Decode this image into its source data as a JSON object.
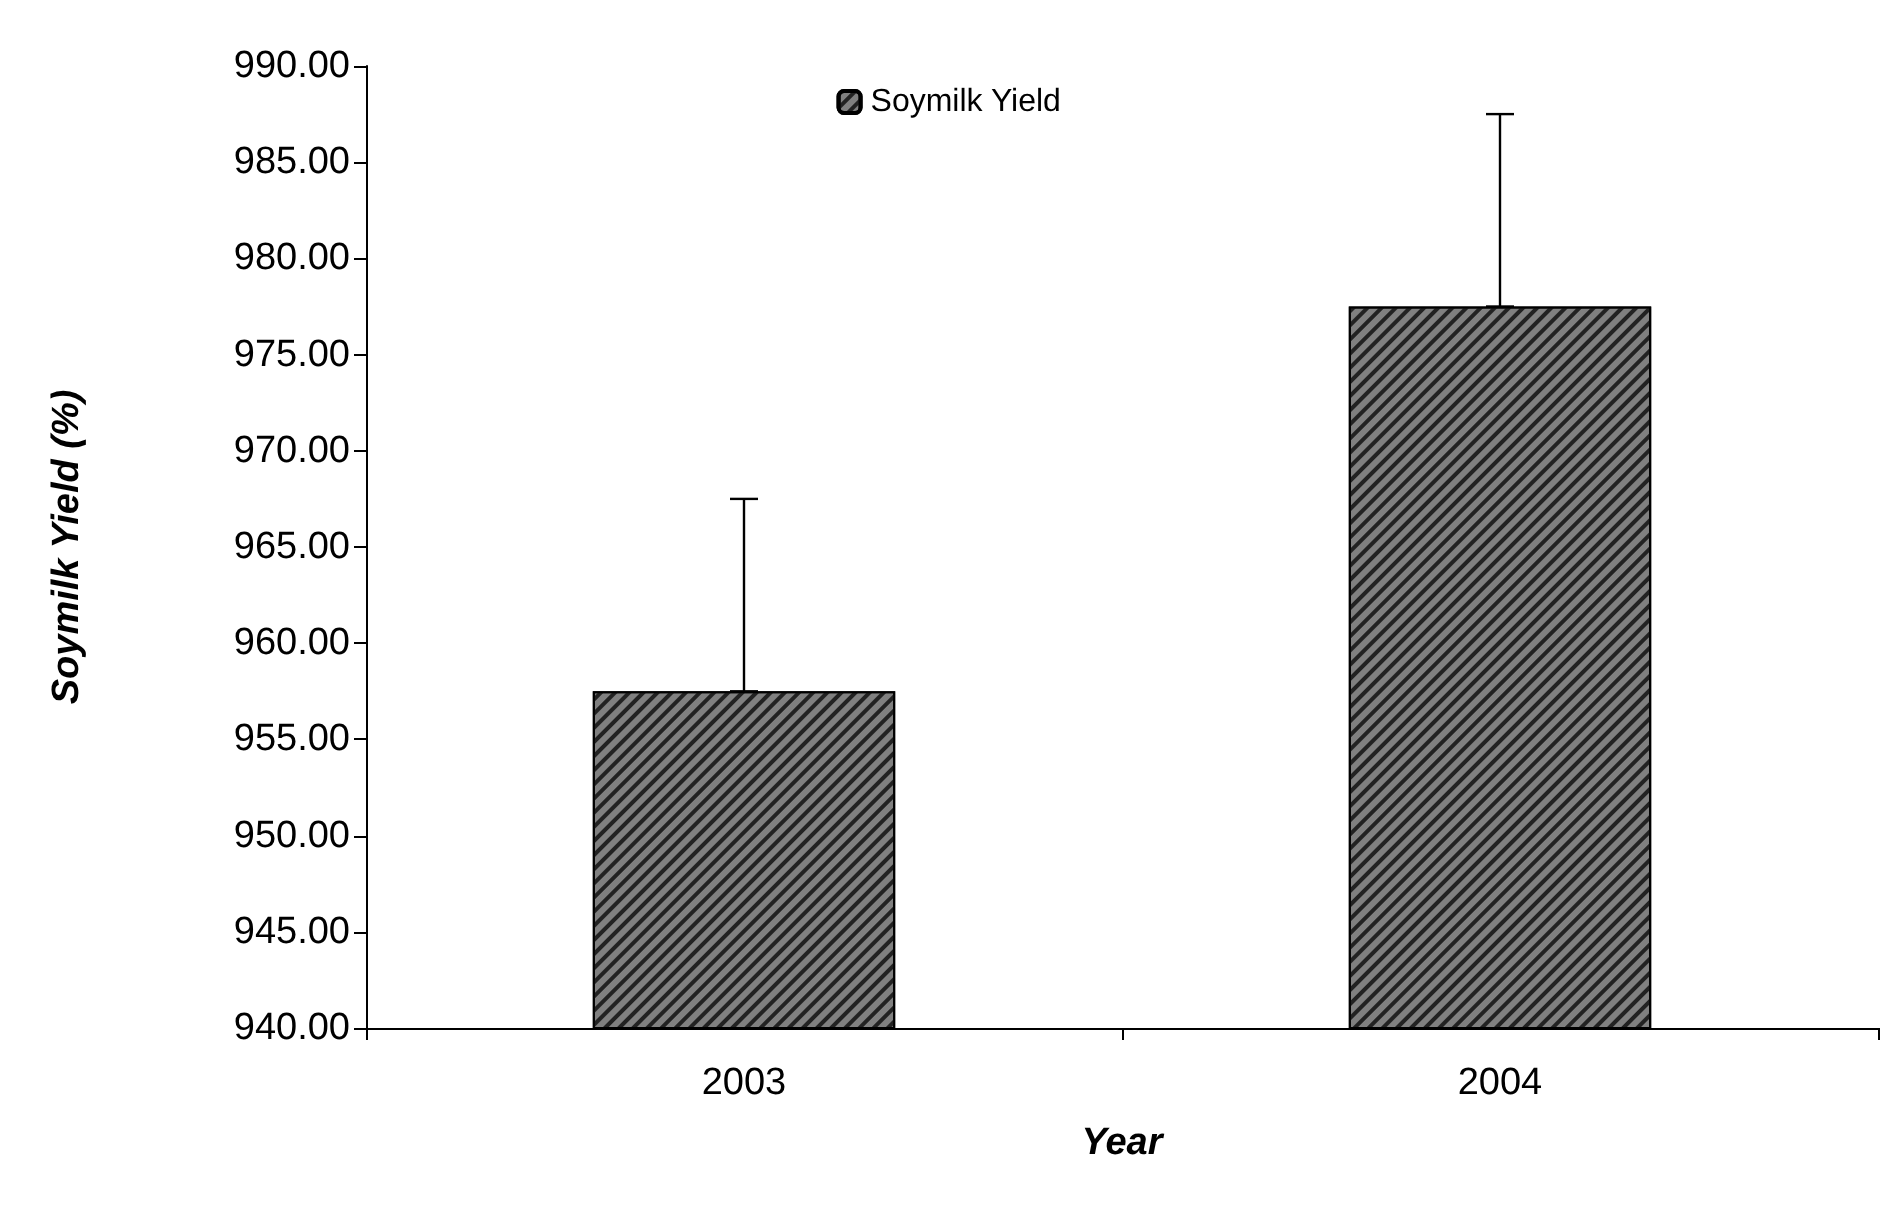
{
  "chart_data": {
    "type": "bar",
    "xlabel": "Year",
    "ylabel": "Soymilk Yield (%)",
    "categories": [
      "2003",
      "2004"
    ],
    "series": [
      {
        "name": "Soymilk Yield",
        "color": "#808080",
        "values": [
          957.5,
          977.5
        ],
        "errors": [
          [
            957.5,
            967.5
          ],
          [
            977.5,
            987.5
          ]
        ]
      }
    ],
    "ylim": [
      940,
      990
    ],
    "yticks": [
      {
        "value": 940,
        "label": "940.00"
      },
      {
        "value": 945,
        "label": "945.00"
      },
      {
        "value": 950,
        "label": "950.00"
      },
      {
        "value": 955,
        "label": "955.00"
      },
      {
        "value": 960,
        "label": "960.00"
      },
      {
        "value": 965,
        "label": "965.00"
      },
      {
        "value": 970,
        "label": "970.00"
      },
      {
        "value": 975,
        "label": "975.00"
      },
      {
        "value": 980,
        "label": "980.00"
      },
      {
        "value": 985,
        "label": "985.00"
      },
      {
        "value": 990,
        "label": "990.00"
      }
    ],
    "grid": false,
    "legend": "top"
  }
}
